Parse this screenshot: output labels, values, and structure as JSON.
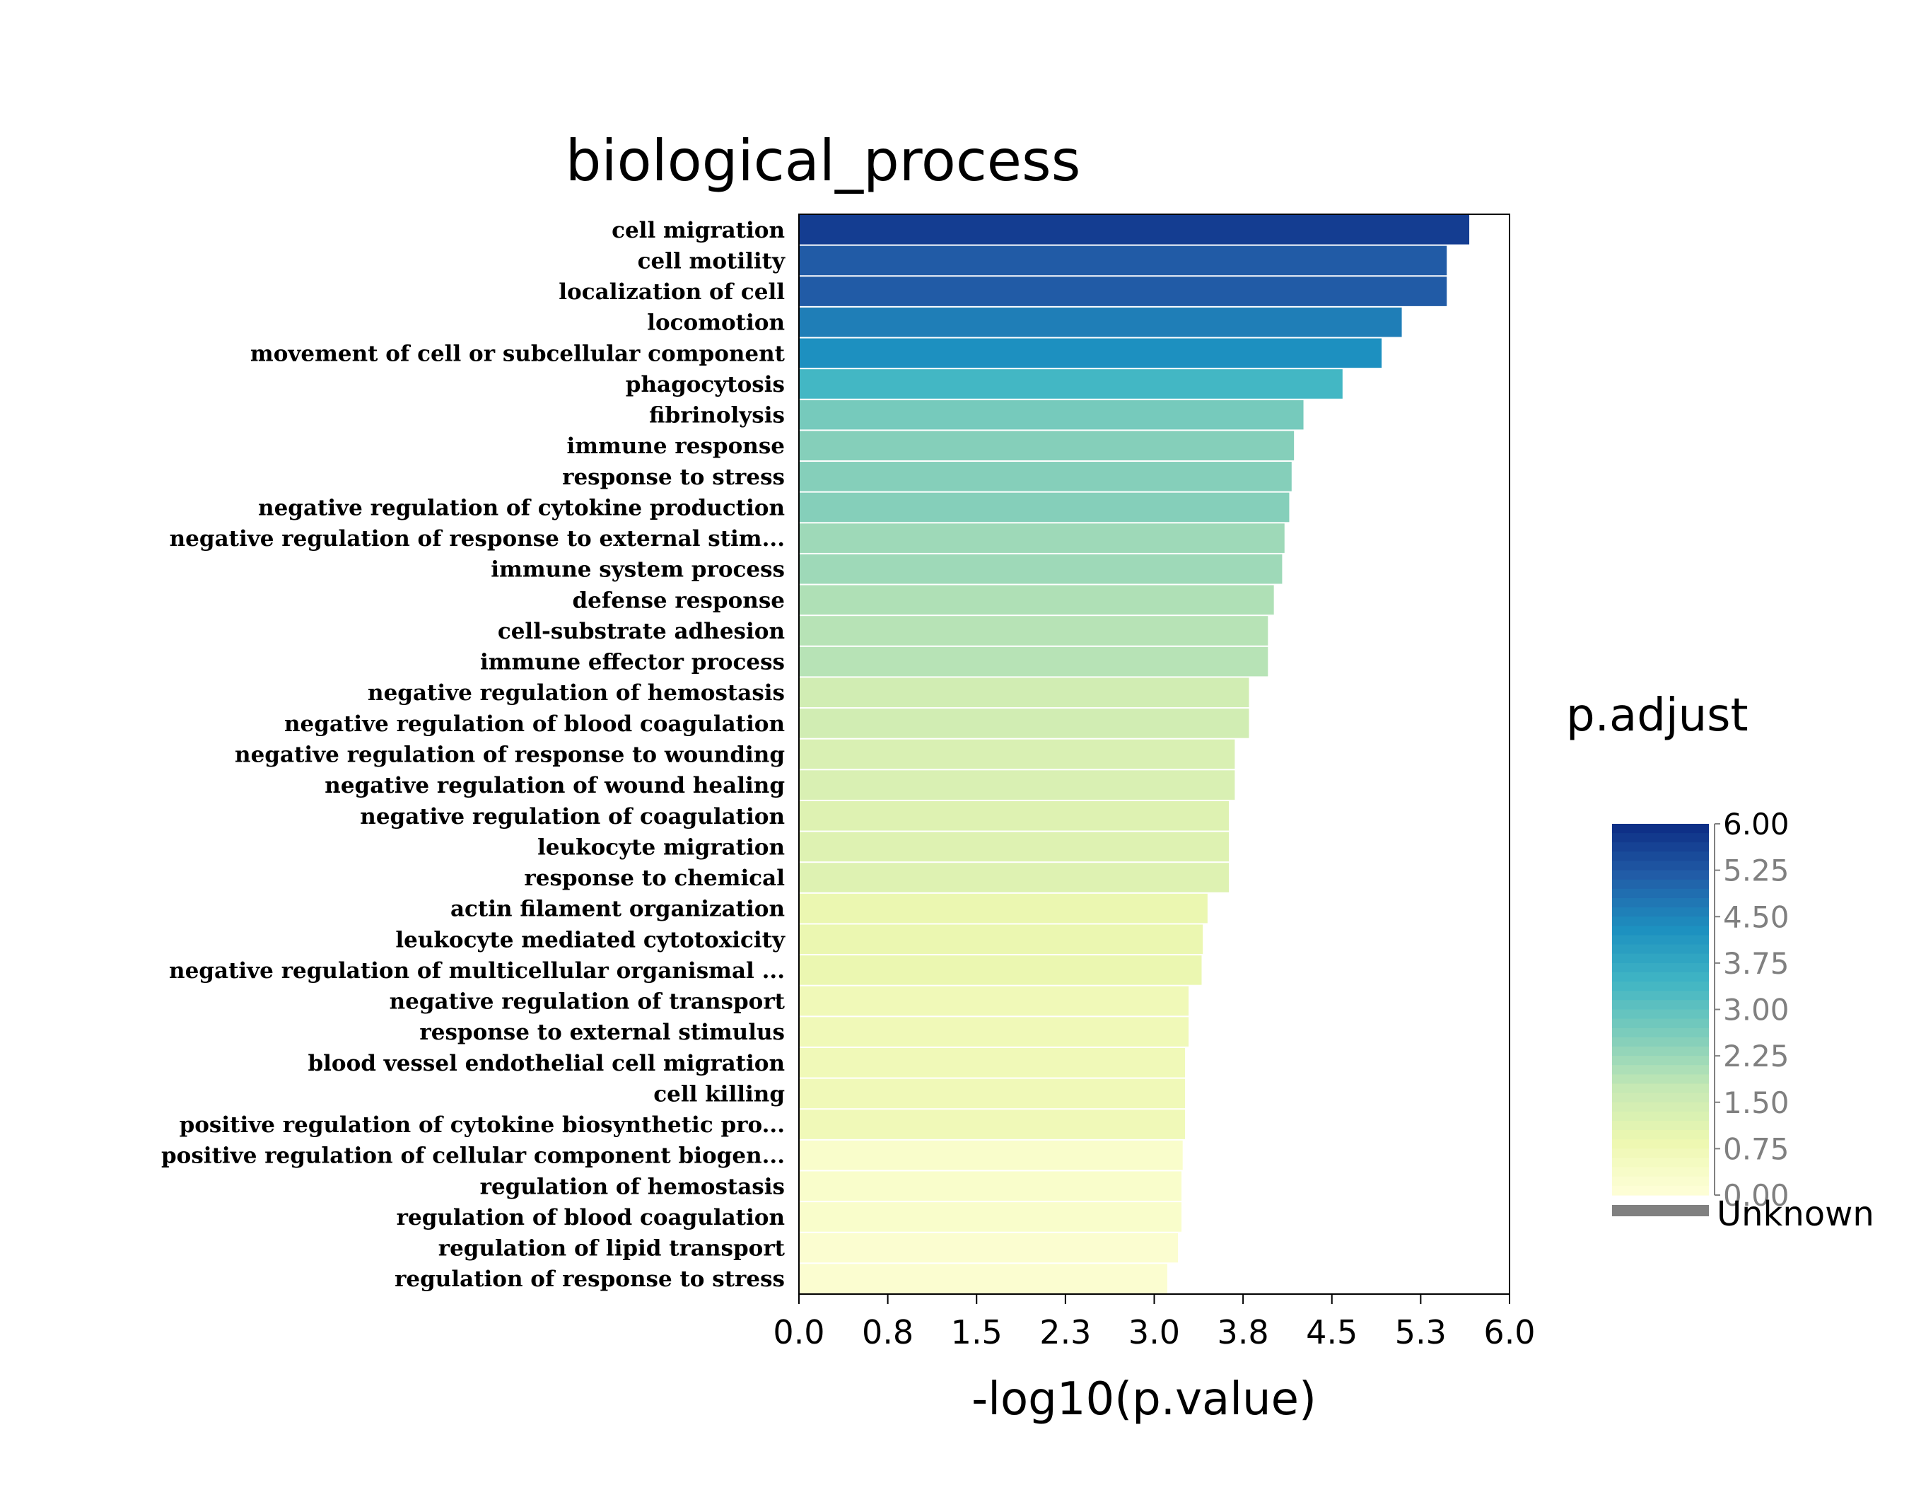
{
  "chart_data": {
    "type": "bar",
    "orientation": "horizontal",
    "title": "biological_process",
    "xlabel": "-log10(p.value)",
    "ylabel": "",
    "xlim": [
      0,
      6
    ],
    "xticks": [
      "0.0",
      "0.8",
      "1.5",
      "2.3",
      "3.0",
      "3.8",
      "4.5",
      "5.3",
      "6.0"
    ],
    "categories": [
      "cell migration",
      "cell motility",
      "localization of cell",
      "locomotion",
      "movement of cell or subcellular component",
      "phagocytosis",
      "fibrinolysis",
      "immune response",
      "response to stress",
      "negative regulation of cytokine production",
      "negative regulation of response to external stim...",
      "immune system process",
      "defense response",
      "cell-substrate adhesion",
      "immune effector process",
      "negative regulation of hemostasis",
      "negative regulation of blood coagulation",
      "negative regulation of response to wounding",
      "negative regulation of wound healing",
      "negative regulation of coagulation",
      "leukocyte migration",
      "response to chemical",
      "actin filament organization",
      "leukocyte mediated cytotoxicity",
      "negative regulation of multicellular organismal ...",
      "negative regulation of transport",
      "response to external stimulus",
      "blood vessel endothelial cell migration",
      "cell killing",
      "positive regulation of cytokine biosynthetic pro...",
      "positive regulation of cellular component biogen...",
      "regulation of hemostasis",
      "regulation of blood coagulation",
      "regulation of lipid transport",
      "regulation of response to stress"
    ],
    "values": [
      5.66,
      5.47,
      5.47,
      5.09,
      4.92,
      4.59,
      4.26,
      4.18,
      4.16,
      4.14,
      4.1,
      4.08,
      4.01,
      3.96,
      3.96,
      3.8,
      3.8,
      3.68,
      3.68,
      3.63,
      3.63,
      3.63,
      3.45,
      3.41,
      3.4,
      3.29,
      3.29,
      3.26,
      3.26,
      3.26,
      3.24,
      3.23,
      3.23,
      3.2,
      3.11
    ],
    "color_values": [
      5.7,
      5.2,
      5.2,
      4.6,
      4.3,
      3.4,
      2.7,
      2.5,
      2.5,
      2.5,
      2.2,
      2.2,
      2.0,
      1.9,
      1.9,
      1.5,
      1.5,
      1.3,
      1.3,
      1.2,
      1.2,
      1.2,
      0.9,
      0.9,
      0.9,
      0.7,
      0.7,
      0.7,
      0.7,
      0.7,
      0.3,
      0.3,
      0.3,
      0.2,
      0.2
    ],
    "legend": {
      "title": "p.adjust",
      "ticks": [
        "6.00",
        "5.25",
        "4.50",
        "3.75",
        "3.00",
        "2.25",
        "1.50",
        "0.75",
        "0.00"
      ],
      "range": [
        0,
        6
      ],
      "unknown_label": "Unknown",
      "unknown_color": "#808080",
      "placement": "right"
    },
    "palette": [
      "#ffffd9",
      "#edf8b1",
      "#c7e9b4",
      "#7fcdbb",
      "#41b6c4",
      "#1d91c0",
      "#225ea8",
      "#0c2c84"
    ]
  }
}
